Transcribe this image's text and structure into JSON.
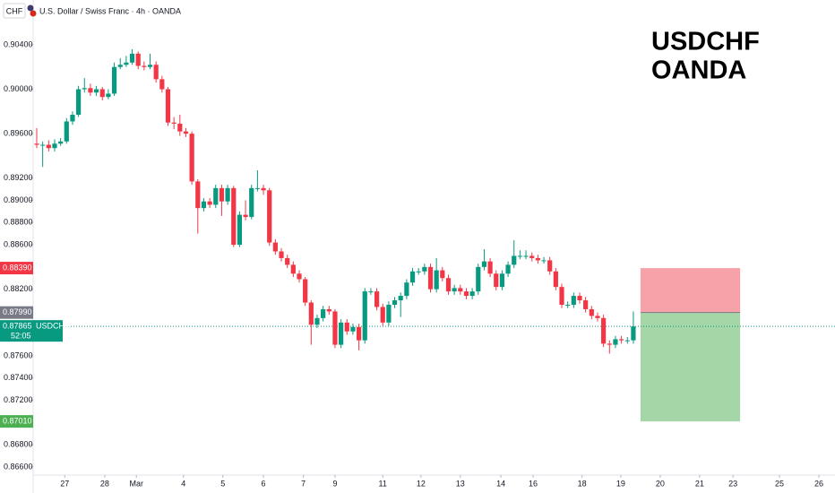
{
  "chart_data": {
    "type": "candlestick",
    "symbol_label": "CHF",
    "header": "U.S. Dollar / Swiss Franc · 4h · OANDA",
    "annotation": [
      "USDCHF",
      "OANDA"
    ],
    "up_color": "#089981",
    "down_color": "#f23645",
    "open": [
      0.8951,
      0.895,
      0.895,
      0.8947,
      0.8951,
      0.8953,
      0.8971,
      0.8977,
      0.9,
      0.9001,
      0.8997,
      0.9,
      0.8993,
      0.8996,
      0.902,
      0.9022,
      0.9024,
      0.9032,
      0.9021,
      0.902,
      0.9022,
      0.9009,
      0.9,
      0.897,
      0.8969,
      0.8962,
      0.896,
      0.8917,
      0.8893,
      0.8899,
      0.8896,
      0.8911,
      0.8899,
      0.8911,
      0.886,
      0.8887,
      0.8885,
      0.8911,
      0.8911,
      0.8909,
      0.8862,
      0.8854,
      0.8848,
      0.8842,
      0.8834,
      0.8829,
      0.8808,
      0.8788,
      0.8794,
      0.8802,
      0.88,
      0.877,
      0.879,
      0.8782,
      0.8786,
      0.8774,
      0.8818,
      0.8818,
      0.8804,
      0.879,
      0.8806,
      0.881,
      0.8814,
      0.8826,
      0.8836,
      0.8836,
      0.884,
      0.882,
      0.8837,
      0.883,
      0.8818,
      0.8821,
      0.8818,
      0.8814,
      0.8818,
      0.884,
      0.8845,
      0.8834,
      0.8822,
      0.8834,
      0.8842,
      0.885,
      0.885,
      0.885,
      0.8848,
      0.8846,
      0.8846,
      0.8836,
      0.8822,
      0.8806,
      0.8806,
      0.8814,
      0.881,
      0.8802,
      0.8796,
      0.8794,
      0.8771,
      0.877,
      0.8775,
      0.8774,
      0.8774
    ],
    "high": [
      0.8965,
      0.8953,
      0.8954,
      0.8955,
      0.8956,
      0.8974,
      0.898,
      0.9003,
      0.901,
      0.9005,
      0.9003,
      0.9002,
      0.9,
      0.9024,
      0.9028,
      0.903,
      0.9036,
      0.9034,
      0.9025,
      0.9032,
      0.9025,
      0.9012,
      0.9002,
      0.8975,
      0.8977,
      0.8965,
      0.8962,
      0.8919,
      0.8902,
      0.8902,
      0.8914,
      0.8914,
      0.8914,
      0.8913,
      0.889,
      0.89,
      0.8914,
      0.8927,
      0.8914,
      0.8911,
      0.8865,
      0.8857,
      0.8851,
      0.8845,
      0.8837,
      0.8831,
      0.881,
      0.8797,
      0.8805,
      0.8805,
      0.8802,
      0.8793,
      0.8793,
      0.8789,
      0.8789,
      0.8821,
      0.8821,
      0.8821,
      0.8807,
      0.8809,
      0.8813,
      0.8817,
      0.8829,
      0.8839,
      0.8839,
      0.8843,
      0.8843,
      0.8848,
      0.884,
      0.8833,
      0.8824,
      0.8824,
      0.8821,
      0.8821,
      0.8843,
      0.8856,
      0.8848,
      0.8837,
      0.8837,
      0.8845,
      0.8864,
      0.8855,
      0.8855,
      0.8853,
      0.8851,
      0.8849,
      0.8849,
      0.8839,
      0.8825,
      0.8809,
      0.8817,
      0.8817,
      0.8813,
      0.8805,
      0.8799,
      0.8797,
      0.8774,
      0.8778,
      0.8778,
      0.8777,
      0.88
    ],
    "low": [
      0.8947,
      0.893,
      0.8944,
      0.8944,
      0.8949,
      0.8951,
      0.8968,
      0.8975,
      0.8997,
      0.8994,
      0.8994,
      0.899,
      0.8991,
      0.8994,
      0.9018,
      0.902,
      0.9022,
      0.9018,
      0.9017,
      0.9018,
      0.9006,
      0.8997,
      0.8967,
      0.8964,
      0.8958,
      0.8957,
      0.8914,
      0.887,
      0.889,
      0.8893,
      0.8893,
      0.8886,
      0.8896,
      0.8858,
      0.8858,
      0.8882,
      0.8883,
      0.8908,
      0.8905,
      0.8859,
      0.8851,
      0.8845,
      0.8839,
      0.8831,
      0.8826,
      0.8805,
      0.877,
      0.8785,
      0.8791,
      0.8797,
      0.8767,
      0.8767,
      0.8779,
      0.8779,
      0.8765,
      0.8771,
      0.8815,
      0.8801,
      0.8787,
      0.8787,
      0.8803,
      0.8795,
      0.8811,
      0.8823,
      0.8833,
      0.8833,
      0.8817,
      0.8817,
      0.8827,
      0.8815,
      0.8815,
      0.8815,
      0.8811,
      0.8811,
      0.8815,
      0.8837,
      0.8831,
      0.8819,
      0.8819,
      0.8831,
      0.8839,
      0.8847,
      0.8847,
      0.8845,
      0.8843,
      0.8843,
      0.8833,
      0.8819,
      0.8803,
      0.8803,
      0.8803,
      0.8807,
      0.8799,
      0.8793,
      0.8791,
      0.8768,
      0.8762,
      0.8767,
      0.8771,
      0.8771,
      0.8771
    ],
    "close": [
      0.895,
      0.895,
      0.8947,
      0.8951,
      0.8953,
      0.8971,
      0.8977,
      0.9,
      0.9001,
      0.8997,
      0.9,
      0.8993,
      0.8996,
      0.902,
      0.9022,
      0.9024,
      0.9032,
      0.9021,
      0.902,
      0.9022,
      0.9009,
      0.9,
      0.897,
      0.8969,
      0.8962,
      0.896,
      0.8917,
      0.8893,
      0.8899,
      0.8896,
      0.8911,
      0.8899,
      0.8911,
      0.886,
      0.8887,
      0.8885,
      0.8911,
      0.8911,
      0.8909,
      0.8862,
      0.8854,
      0.8848,
      0.8842,
      0.8834,
      0.8829,
      0.8808,
      0.8788,
      0.8794,
      0.8802,
      0.88,
      0.877,
      0.879,
      0.8782,
      0.8786,
      0.8774,
      0.8818,
      0.8818,
      0.8804,
      0.879,
      0.8806,
      0.881,
      0.8814,
      0.8826,
      0.8836,
      0.8836,
      0.884,
      0.882,
      0.8837,
      0.883,
      0.8818,
      0.8821,
      0.8818,
      0.8814,
      0.8818,
      0.884,
      0.8845,
      0.8834,
      0.8822,
      0.8834,
      0.8842,
      0.885,
      0.885,
      0.885,
      0.8848,
      0.8846,
      0.8846,
      0.8836,
      0.8822,
      0.8806,
      0.8806,
      0.8814,
      0.881,
      0.8802,
      0.8796,
      0.8794,
      0.8771,
      0.877,
      0.8775,
      0.8774,
      0.8774,
      0.87865
    ],
    "ylim": [
      0.86527,
      0.90803
    ],
    "yticks": [
      {
        "value": 0.904,
        "label": "0.90400"
      },
      {
        "value": 0.9,
        "label": "0.90000"
      },
      {
        "value": 0.896,
        "label": "0.89600"
      },
      {
        "value": 0.892,
        "label": "0.89200"
      },
      {
        "value": 0.89,
        "label": "0.89000"
      },
      {
        "value": 0.888,
        "label": "0.88800"
      },
      {
        "value": 0.886,
        "label": "0.88600"
      },
      {
        "value": 0.882,
        "label": "0.88200"
      },
      {
        "value": 0.876,
        "label": "0.87600"
      },
      {
        "value": 0.874,
        "label": "0.87400"
      },
      {
        "value": 0.872,
        "label": "0.87200"
      },
      {
        "value": 0.868,
        "label": "0.86800"
      },
      {
        "value": 0.866,
        "label": "0.86600"
      }
    ],
    "xlim": [
      -0.6,
      133.8
    ],
    "xticks": [
      {
        "value": 4.7,
        "label": "27"
      },
      {
        "value": 11.4,
        "label": "28"
      },
      {
        "value": 16.7,
        "label": "Mar"
      },
      {
        "value": 24.6,
        "label": "4"
      },
      {
        "value": 31.2,
        "label": "5"
      },
      {
        "value": 38.0,
        "label": "6"
      },
      {
        "value": 44.7,
        "label": "7"
      },
      {
        "value": 50.0,
        "label": "9"
      },
      {
        "value": 58.0,
        "label": "11"
      },
      {
        "value": 64.4,
        "label": "12"
      },
      {
        "value": 71.0,
        "label": "13"
      },
      {
        "value": 77.8,
        "label": "14"
      },
      {
        "value": 83.2,
        "label": "16"
      },
      {
        "value": 91.4,
        "label": "18"
      },
      {
        "value": 97.9,
        "label": "19"
      },
      {
        "value": 104.5,
        "label": "20"
      },
      {
        "value": 111.1,
        "label": "21"
      },
      {
        "value": 116.7,
        "label": "23"
      },
      {
        "value": 124.5,
        "label": "25"
      },
      {
        "value": 131.1,
        "label": "26"
      }
    ],
    "price_labels": [
      {
        "value": 0.8839,
        "label": "0.88390",
        "color": "#f23645"
      },
      {
        "value": 0.8799,
        "label": "0.87990",
        "color": "#787b86"
      },
      {
        "value": 0.8701,
        "label": "0.87010",
        "color": "#4caf50"
      }
    ],
    "current": {
      "value": 0.87865,
      "label": "0.87865",
      "symbol": "USDCHF",
      "countdown": "52:05",
      "color": "#089981"
    },
    "position": {
      "x_range": [
        101.2,
        117.9
      ],
      "stop_fill": "#f7a1a8",
      "target_fill": "#a5d6a7"
    }
  }
}
